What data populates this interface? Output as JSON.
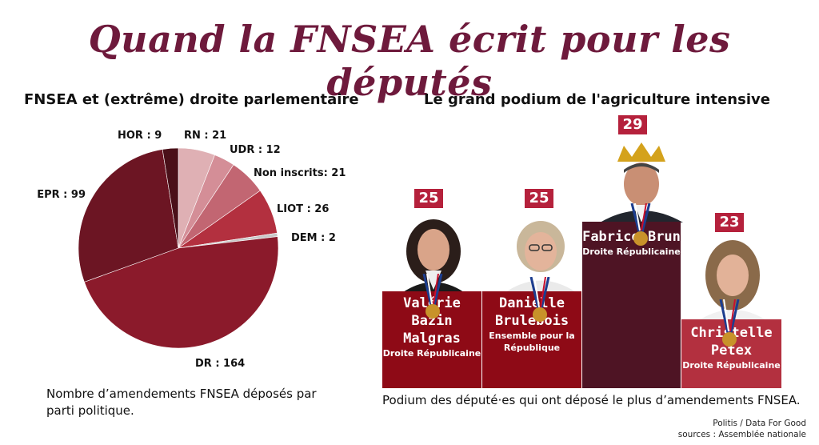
{
  "title": "Quand la FNSEA écrit pour les députés",
  "left": {
    "subtitle": "FNSEA et (extrême) droite parlementaire",
    "caption": "Nombre d’amendements FNSEA déposés par parti politique."
  },
  "right": {
    "subtitle": "Le grand podium de l'agriculture intensive",
    "caption": "Podium des député·es qui ont déposé le plus d’amendements FNSEA."
  },
  "sources": {
    "line1": "Politis / Data For Good",
    "line2": "sources : Assemblée nationale"
  },
  "podium": [
    {
      "rank_value": "25",
      "name_line1": "Valérie Bazin",
      "name_line2": "Malgras",
      "party_line1": "Droite Républicaine",
      "party_line2": "",
      "color": "#8e0a16"
    },
    {
      "rank_value": "25",
      "name_line1": "Danielle",
      "name_line2": "Brulebois",
      "party_line1": "Ensemble pour la",
      "party_line2": "République",
      "color": "#8e0a16"
    },
    {
      "rank_value": "29",
      "name_line1": "Fabrice Brun",
      "name_line2": "",
      "party_line1": "Droite Républicaine",
      "party_line2": "",
      "color": "#4e1424"
    },
    {
      "rank_value": "23",
      "name_line1": "Christelle",
      "name_line2": "Petex",
      "party_line1": "Droite Républicaine",
      "party_line2": "",
      "color": "#b3303f"
    }
  ],
  "chart_data": {
    "type": "pie",
    "title": "FNSEA et (extrême) droite parlementaire",
    "start_angle_deg": 0,
    "direction": "clockwise",
    "slices": [
      {
        "label": "RN : 21",
        "name": "RN",
        "value": 21,
        "color": "#dfb0b4"
      },
      {
        "label": "UDR : 12",
        "name": "UDR",
        "value": 12,
        "color": "#d48e97"
      },
      {
        "label": "Non inscrits: 21",
        "name": "Non inscrits",
        "value": 21,
        "color": "#c26672"
      },
      {
        "label": "LIOT : 26",
        "name": "LIOT",
        "value": 26,
        "color": "#b3303f"
      },
      {
        "label": "DEM : 2",
        "name": "DEM",
        "value": 2,
        "color": "#c9c9c9"
      },
      {
        "label": "DR : 164",
        "name": "DR",
        "value": 164,
        "color": "#8b1a2b"
      },
      {
        "label": "EPR : 99",
        "name": "EPR",
        "value": 99,
        "color": "#6c1523"
      },
      {
        "label": "HOR : 9",
        "name": "HOR",
        "value": 9,
        "color": "#4a1019"
      }
    ]
  }
}
